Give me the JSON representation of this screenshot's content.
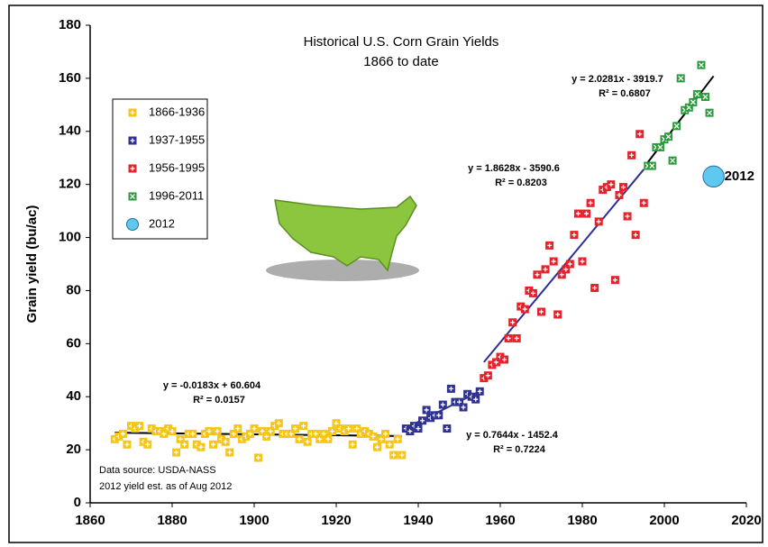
{
  "chart_data": {
    "type": "scatter",
    "title": "Historical U.S. Corn Grain Yields",
    "subtitle": "1866 to date",
    "y_label": "Grain yield (bu/ac)",
    "note_lines": [
      "Data source: USDA-NASS",
      "2012 yield est. as of Aug 2012"
    ],
    "xlim": [
      1860,
      2020
    ],
    "xticks": [
      1860,
      1880,
      1900,
      1920,
      1940,
      1960,
      1980,
      2000,
      2020
    ],
    "ylim": [
      0,
      180
    ],
    "yticks": [
      0,
      20,
      40,
      60,
      80,
      100,
      120,
      140,
      160,
      180
    ],
    "series": [
      {
        "name": "1866-1936",
        "color": "#f5c518",
        "marker": "plus",
        "x": [
          1866,
          1867,
          1868,
          1869,
          1870,
          1871,
          1872,
          1873,
          1874,
          1875,
          1876,
          1877,
          1878,
          1879,
          1880,
          1881,
          1882,
          1883,
          1884,
          1885,
          1886,
          1887,
          1888,
          1889,
          1890,
          1891,
          1892,
          1893,
          1894,
          1895,
          1896,
          1897,
          1898,
          1899,
          1900,
          1901,
          1902,
          1903,
          1904,
          1905,
          1906,
          1907,
          1908,
          1909,
          1910,
          1911,
          1912,
          1913,
          1914,
          1915,
          1916,
          1917,
          1918,
          1919,
          1920,
          1921,
          1922,
          1923,
          1924,
          1925,
          1926,
          1927,
          1928,
          1929,
          1930,
          1931,
          1932,
          1933,
          1934,
          1935,
          1936
        ],
        "values": [
          24,
          25,
          26,
          22,
          29,
          28,
          29,
          23,
          22,
          28,
          27,
          27,
          26,
          28,
          27,
          19,
          24,
          22,
          26,
          26,
          22,
          21,
          26,
          27,
          22,
          27,
          24,
          23,
          19,
          26,
          28,
          24,
          25,
          26,
          28,
          17,
          27,
          25,
          27,
          29,
          30,
          26,
          26,
          26,
          28,
          24,
          29,
          23,
          26,
          26,
          24,
          26,
          24,
          27,
          30,
          28,
          27,
          28,
          22,
          28,
          26,
          27,
          26,
          25,
          21,
          24,
          26,
          22,
          18,
          24,
          18
        ]
      },
      {
        "name": "1937-1955",
        "color": "#2e3192",
        "marker": "plus",
        "x": [
          1937,
          1938,
          1939,
          1940,
          1941,
          1942,
          1943,
          1944,
          1945,
          1946,
          1947,
          1948,
          1949,
          1950,
          1951,
          1952,
          1953,
          1954,
          1955
        ],
        "values": [
          28,
          27,
          29,
          28,
          31,
          35,
          32,
          33,
          33,
          37,
          28,
          43,
          38,
          38,
          36,
          41,
          40,
          39,
          42
        ]
      },
      {
        "name": "1956-1995",
        "color": "#e8202a",
        "marker": "plus",
        "x": [
          1956,
          1957,
          1958,
          1959,
          1960,
          1961,
          1962,
          1963,
          1964,
          1965,
          1966,
          1967,
          1968,
          1969,
          1970,
          1971,
          1972,
          1973,
          1974,
          1975,
          1976,
          1977,
          1978,
          1979,
          1980,
          1981,
          1982,
          1983,
          1984,
          1985,
          1986,
          1987,
          1988,
          1989,
          1990,
          1991,
          1992,
          1993,
          1994,
          1995
        ],
        "values": [
          47,
          48,
          52,
          53,
          55,
          54,
          62,
          68,
          62,
          74,
          73,
          80,
          79,
          86,
          72,
          88,
          97,
          91,
          71,
          86,
          88,
          90,
          101,
          109,
          91,
          109,
          113,
          81,
          106,
          118,
          119,
          120,
          84,
          116,
          119,
          108,
          131,
          101,
          139,
          113
        ]
      },
      {
        "name": "1996-2011",
        "color": "#2a9a3a",
        "marker": "x",
        "x": [
          1996,
          1997,
          1998,
          1999,
          2000,
          2001,
          2002,
          2003,
          2004,
          2005,
          2006,
          2007,
          2008,
          2009,
          2010,
          2011
        ],
        "values": [
          127,
          127,
          134,
          134,
          137,
          138,
          129,
          142,
          160,
          148,
          149,
          151,
          154,
          165,
          153,
          147
        ]
      },
      {
        "name": "2012",
        "color": "#5ec8f0",
        "marker": "circle",
        "x": [
          2012
        ],
        "values": [
          123
        ],
        "point_label": "2012"
      }
    ],
    "trendlines": [
      {
        "equation": "y = -0.0183x + 60.604",
        "r2": "R² = 0.0157",
        "slope": -0.0183,
        "intercept": 60.604,
        "x": [
          1866,
          1936
        ],
        "color": "#000000"
      },
      {
        "equation": "y = 0.7644x - 1452.4",
        "r2": "R² = 0.7224",
        "slope": 0.7644,
        "intercept": -1452.4,
        "x": [
          1937,
          1955
        ],
        "color": "#2e3192"
      },
      {
        "equation": "y = 1.8628x - 3590.6",
        "r2": "R² = 0.8203",
        "slope": 1.8628,
        "intercept": -3590.6,
        "x": [
          1956,
          1995
        ],
        "color": "#2e3192"
      },
      {
        "equation": "y = 2.0281x - 3919.7",
        "r2": "R² = 0.6807",
        "slope": 2.0281,
        "intercept": -3919.7,
        "x": [
          1996,
          2012
        ],
        "color": "#000000"
      }
    ]
  }
}
